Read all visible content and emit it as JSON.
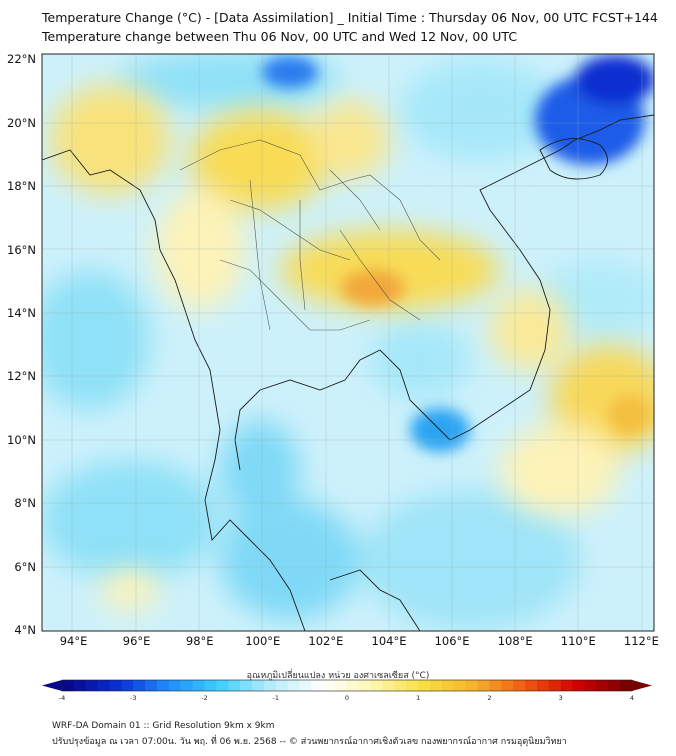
{
  "header": {
    "title_line1": "Temperature Change (°C) - [Data Assimilation] _ Initial Time : Thursday 06 Nov, 00 UTC FCST+144",
    "title_line2": "Temperature change between Thu 06 Nov, 00 UTC and Wed 12 Nov, 00 UTC"
  },
  "map": {
    "lat_labels": [
      "22°N",
      "20°N",
      "18°N",
      "16°N",
      "14°N",
      "12°N",
      "10°N",
      "8°N",
      "6°N",
      "4°N"
    ],
    "lon_labels": [
      "94°E",
      "96°E",
      "98°E",
      "100°E",
      "102°E",
      "104°E",
      "106°E",
      "108°E",
      "110°E",
      "112°E"
    ],
    "extent": {
      "lon_min": 93,
      "lon_max": 112.4,
      "lat_min": 4,
      "lat_max": 22.2
    }
  },
  "colorbar": {
    "title": "อุณหภูมิเปลี่ยนแปลง หน่วย องศาเซลเซียส (°C)",
    "tick_labels": [
      "-4",
      "-3",
      "-2",
      "-1",
      "0",
      "1",
      "2",
      "3",
      "4"
    ],
    "min": -4,
    "max": 4,
    "stops": [
      "#08088a",
      "#0a2fd6",
      "#1f8fff",
      "#3fd0ff",
      "#b8ecfb",
      "#ffffff",
      "#fff7b0",
      "#f6e040",
      "#f7b22c",
      "#f15a10",
      "#d40000",
      "#7a0000"
    ]
  },
  "footer": {
    "line1": "WRF-DA Domain 01 :: Grid Resolution 9km x 9km",
    "line2": "ปรับปรุงข้อมูล ณ เวลา 07:00น. วัน พฤ. ที่ 06 พ.ย. 2568 -- © ส่วนพยากรณ์อากาศเชิงตัวเลข กองพยากรณ์อากาศ กรมอุตุนิยมวิทยา"
  },
  "colors": {
    "sea_base": "#cdf1fb",
    "warm_light": "#fdf3b8",
    "warm": "#f8dc56",
    "warm_strong": "#f2a83a",
    "cool": "#8fe1f7",
    "cool_strong": "#2aa4f2",
    "cold": "#0d2ed0",
    "border": "#1a1a1a"
  }
}
